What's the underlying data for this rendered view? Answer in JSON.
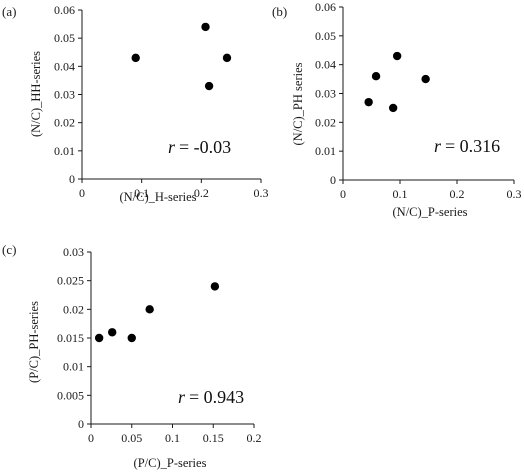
{
  "chart_data": [
    {
      "type": "scatter",
      "panel_label": "(a)",
      "xlabel": "(N/C)_H-series",
      "ylabel": "(N/C)_HH-series",
      "xlim": [
        0,
        0.3
      ],
      "ylim": [
        0,
        0.06
      ],
      "x_ticks": [
        "0",
        "0.1",
        "0.2",
        "0.3"
      ],
      "y_ticks": [
        "0",
        "0.01",
        "0.02",
        "0.03",
        "0.04",
        "0.05",
        "0.06"
      ],
      "points": [
        {
          "x": 0.09,
          "y": 0.043
        },
        {
          "x": 0.207,
          "y": 0.054
        },
        {
          "x": 0.243,
          "y": 0.043
        },
        {
          "x": 0.213,
          "y": 0.033
        }
      ],
      "r_symbol": "r",
      "r_value": "= -0.03",
      "grid": false
    },
    {
      "type": "scatter",
      "panel_label": "(b)",
      "xlabel": "(N/C)_P-series",
      "ylabel": "(N/C)_PH series",
      "xlim": [
        0,
        0.3
      ],
      "ylim": [
        0,
        0.06
      ],
      "x_ticks": [
        "0",
        "0.1",
        "0.2",
        "0.3"
      ],
      "y_ticks": [
        "0",
        "0.01",
        "0.02",
        "0.03",
        "0.04",
        "0.05",
        "0.06"
      ],
      "points": [
        {
          "x": 0.045,
          "y": 0.027
        },
        {
          "x": 0.058,
          "y": 0.036
        },
        {
          "x": 0.088,
          "y": 0.025
        },
        {
          "x": 0.095,
          "y": 0.043
        },
        {
          "x": 0.145,
          "y": 0.035
        }
      ],
      "r_symbol": "r",
      "r_value": "= 0.316",
      "grid": false
    },
    {
      "type": "scatter",
      "panel_label": "(c)",
      "xlabel": "(P/C)_P-series",
      "ylabel": "(P/C)_PH-series",
      "xlim": [
        0,
        0.2
      ],
      "ylim": [
        0,
        0.03
      ],
      "x_ticks": [
        "0",
        "0.05",
        "0.1",
        "0.15",
        "0.2"
      ],
      "y_ticks": [
        "0",
        "0.005",
        "0.01",
        "0.015",
        "0.02",
        "0.025",
        "0.03"
      ],
      "points": [
        {
          "x": 0.01,
          "y": 0.015
        },
        {
          "x": 0.026,
          "y": 0.016
        },
        {
          "x": 0.05,
          "y": 0.015
        },
        {
          "x": 0.072,
          "y": 0.02
        },
        {
          "x": 0.152,
          "y": 0.024
        }
      ],
      "r_symbol": "r",
      "r_value": "= 0.943",
      "grid": false
    }
  ]
}
